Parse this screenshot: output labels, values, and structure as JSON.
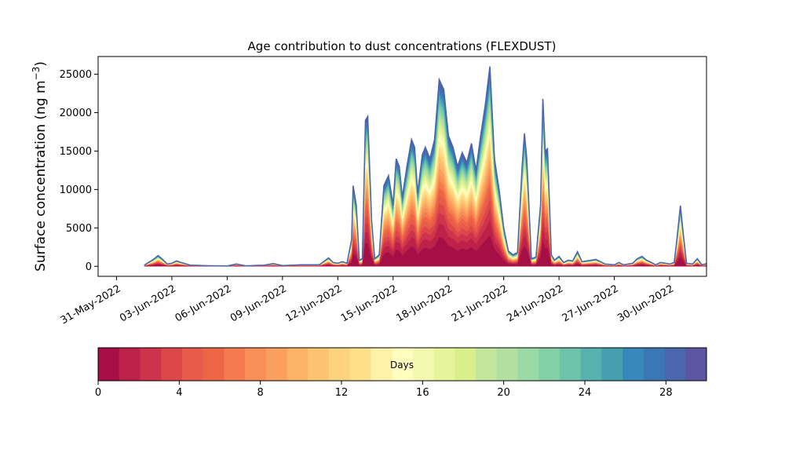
{
  "chart_data": {
    "type": "area",
    "title": "Age contribution to dust concentrations (FLEXDUST)",
    "ylabel_main": "Surface concentration (ng m",
    "ylabel_exp": "−3",
    "ylabel_close": ")",
    "ylim": [
      -1300,
      27300
    ],
    "yticks": [
      0,
      5000,
      10000,
      15000,
      20000,
      25000
    ],
    "xlim": [
      "2022-05-30",
      "2022-07-02"
    ],
    "xticks": [
      "2022-05-31",
      "2022-06-03",
      "2022-06-06",
      "2022-06-09",
      "2022-06-12",
      "2022-06-15",
      "2022-06-18",
      "2022-06-21",
      "2022-06-24",
      "2022-06-27",
      "2022-06-30"
    ],
    "xtick_labels": [
      "31-May-2022",
      "03-Jun-2022",
      "06-Jun-2022",
      "09-Jun-2022",
      "12-Jun-2022",
      "15-Jun-2022",
      "18-Jun-2022",
      "21-Jun-2022",
      "24-Jun-2022",
      "27-Jun-2022",
      "30-Jun-2022"
    ],
    "total": [
      [
        "2022-06-01T12:00",
        150
      ],
      [
        "2022-06-02T00:00",
        900
      ],
      [
        "2022-06-02T06:00",
        1400
      ],
      [
        "2022-06-02T12:00",
        900
      ],
      [
        "2022-06-02T18:00",
        300
      ],
      [
        "2022-06-03T00:00",
        400
      ],
      [
        "2022-06-03T06:00",
        700
      ],
      [
        "2022-06-03T12:00",
        500
      ],
      [
        "2022-06-04T00:00",
        150
      ],
      [
        "2022-06-05T00:00",
        80
      ],
      [
        "2022-06-06T00:00",
        50
      ],
      [
        "2022-06-06T12:00",
        300
      ],
      [
        "2022-06-07T00:00",
        60
      ],
      [
        "2022-06-08T00:00",
        150
      ],
      [
        "2022-06-08T12:00",
        350
      ],
      [
        "2022-06-09T00:00",
        100
      ],
      [
        "2022-06-10T00:00",
        200
      ],
      [
        "2022-06-11T00:00",
        200
      ],
      [
        "2022-06-11T12:00",
        1100
      ],
      [
        "2022-06-11T18:00",
        500
      ],
      [
        "2022-06-12T00:00",
        400
      ],
      [
        "2022-06-12T06:00",
        600
      ],
      [
        "2022-06-12T12:00",
        400
      ],
      [
        "2022-06-12T18:00",
        3500
      ],
      [
        "2022-06-12T20:00",
        10500
      ],
      [
        "2022-06-13T00:00",
        8000
      ],
      [
        "2022-06-13T04:00",
        800
      ],
      [
        "2022-06-13T08:00",
        1000
      ],
      [
        "2022-06-13T12:00",
        19000
      ],
      [
        "2022-06-13T15:00",
        19500
      ],
      [
        "2022-06-13T20:00",
        6000
      ],
      [
        "2022-06-14T00:00",
        1000
      ],
      [
        "2022-06-14T06:00",
        1500
      ],
      [
        "2022-06-14T12:00",
        10500
      ],
      [
        "2022-06-14T18:00",
        11800
      ],
      [
        "2022-06-15T00:00",
        8000
      ],
      [
        "2022-06-15T04:00",
        14000
      ],
      [
        "2022-06-15T08:00",
        13000
      ],
      [
        "2022-06-15T12:00",
        9000
      ],
      [
        "2022-06-15T18:00",
        13000
      ],
      [
        "2022-06-16T00:00",
        16500
      ],
      [
        "2022-06-16T04:00",
        15500
      ],
      [
        "2022-06-16T08:00",
        9500
      ],
      [
        "2022-06-16T14:00",
        14500
      ],
      [
        "2022-06-16T18:00",
        15500
      ],
      [
        "2022-06-17T00:00",
        14000
      ],
      [
        "2022-06-17T06:00",
        16500
      ],
      [
        "2022-06-17T12:00",
        24300
      ],
      [
        "2022-06-17T18:00",
        23000
      ],
      [
        "2022-06-18T00:00",
        17000
      ],
      [
        "2022-06-18T06:00",
        15500
      ],
      [
        "2022-06-18T12:00",
        13000
      ],
      [
        "2022-06-18T18:00",
        14800
      ],
      [
        "2022-06-19T00:00",
        13500
      ],
      [
        "2022-06-19T06:00",
        16000
      ],
      [
        "2022-06-19T12:00",
        12500
      ],
      [
        "2022-06-19T18:00",
        17000
      ],
      [
        "2022-06-20T00:00",
        21000
      ],
      [
        "2022-06-20T06:00",
        26000
      ],
      [
        "2022-06-20T12:00",
        14000
      ],
      [
        "2022-06-20T18:00",
        10000
      ],
      [
        "2022-06-21T00:00",
        5000
      ],
      [
        "2022-06-21T06:00",
        2000
      ],
      [
        "2022-06-21T12:00",
        1500
      ],
      [
        "2022-06-21T18:00",
        1800
      ],
      [
        "2022-06-22T00:00",
        13000
      ],
      [
        "2022-06-22T03:00",
        17300
      ],
      [
        "2022-06-22T06:00",
        14000
      ],
      [
        "2022-06-22T12:00",
        1000
      ],
      [
        "2022-06-22T18:00",
        1200
      ],
      [
        "2022-06-23T00:00",
        8000
      ],
      [
        "2022-06-23T03:00",
        21800
      ],
      [
        "2022-06-23T06:00",
        15000
      ],
      [
        "2022-06-23T09:00",
        15300
      ],
      [
        "2022-06-23T14:00",
        1500
      ],
      [
        "2022-06-23T18:00",
        800
      ],
      [
        "2022-06-24T00:00",
        1300
      ],
      [
        "2022-06-24T06:00",
        500
      ],
      [
        "2022-06-24T12:00",
        800
      ],
      [
        "2022-06-24T18:00",
        700
      ],
      [
        "2022-06-25T00:00",
        1900
      ],
      [
        "2022-06-25T06:00",
        600
      ],
      [
        "2022-06-25T12:00",
        700
      ],
      [
        "2022-06-26T00:00",
        900
      ],
      [
        "2022-06-26T12:00",
        300
      ],
      [
        "2022-06-27T00:00",
        200
      ],
      [
        "2022-06-27T06:00",
        500
      ],
      [
        "2022-06-27T12:00",
        200
      ],
      [
        "2022-06-28T00:00",
        400
      ],
      [
        "2022-06-28T06:00",
        1000
      ],
      [
        "2022-06-28T12:00",
        1300
      ],
      [
        "2022-06-28T18:00",
        800
      ],
      [
        "2022-06-29T00:00",
        500
      ],
      [
        "2022-06-29T06:00",
        200
      ],
      [
        "2022-06-29T12:00",
        500
      ],
      [
        "2022-06-30T00:00",
        300
      ],
      [
        "2022-06-30T06:00",
        500
      ],
      [
        "2022-06-30T10:00",
        4000
      ],
      [
        "2022-06-30T14:00",
        7900
      ],
      [
        "2022-06-30T18:00",
        4000
      ],
      [
        "2022-06-30T22:00",
        400
      ],
      [
        "2022-07-01T06:00",
        300
      ],
      [
        "2022-07-01T12:00",
        1000
      ],
      [
        "2022-07-01T18:00",
        200
      ],
      [
        "2022-07-02T00:00",
        350
      ]
    ],
    "colorbar": {
      "label": "Days",
      "min": 0,
      "max": 30,
      "ticks": [
        0,
        4,
        8,
        12,
        16,
        20,
        24,
        28
      ],
      "colors": [
        "#a50f45",
        "#bb2149",
        "#cd344b",
        "#dc474a",
        "#e85a4a",
        "#ec6645",
        "#f57a4d",
        "#f88f56",
        "#fb9f5f",
        "#fdb365",
        "#fec370",
        "#fed37f",
        "#fee08b",
        "#fff1a7",
        "#fffebe",
        "#f3faaf",
        "#e6f599",
        "#d9ef8b",
        "#c3e69c",
        "#b1e0a0",
        "#9ad8a4",
        "#83cfa6",
        "#6dc4ab",
        "#57b2ad",
        "#469fb1",
        "#3787bb",
        "#3b77b7",
        "#4b66ad",
        "#5a56a2"
      ]
    }
  }
}
